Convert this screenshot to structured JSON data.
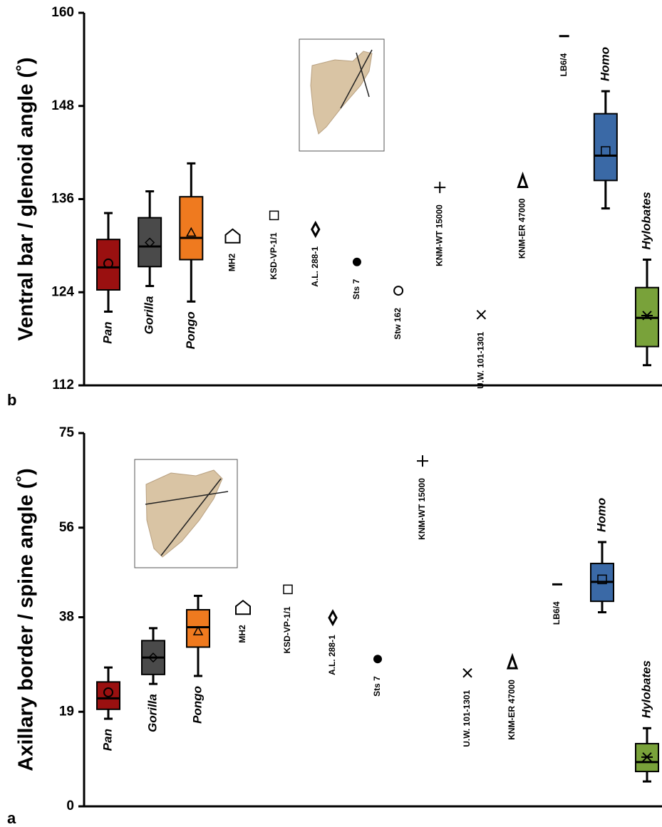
{
  "chart_data": [
    {
      "type": "box",
      "panel_label": "b",
      "ylabel": "Ventral bar / glenoid angle (˚)",
      "ylim": [
        112,
        160
      ],
      "yticks": [
        112,
        124,
        136,
        148,
        160
      ],
      "items": [
        {
          "name": "Pan",
          "color": "#9a1010",
          "marker": "circle",
          "min": 121.5,
          "q1": 124.3,
          "median": 127.2,
          "q3": 130.8,
          "max": 134.2,
          "mean": 127.7
        },
        {
          "name": "Gorilla",
          "color": "#4a4a4a",
          "marker": "diamond",
          "min": 124.8,
          "q1": 127.3,
          "median": 129.9,
          "q3": 133.6,
          "max": 137,
          "mean": 130.4
        },
        {
          "name": "Pongo",
          "color": "#ef7a1f",
          "marker": "triangle",
          "min": 122.8,
          "q1": 128.2,
          "median": 131,
          "q3": 136.3,
          "max": 140.6,
          "mean": 131.7
        },
        {
          "name": "MH2",
          "marker": "pentagon",
          "value": 131.2
        },
        {
          "name": "KSD-VP-1/1",
          "marker": "square",
          "value": 133.9
        },
        {
          "name": "A.L. 288-1",
          "marker": "diamond-bold",
          "value": 132.1
        },
        {
          "name": "Sts 7",
          "marker": "dot",
          "value": 127.9
        },
        {
          "name": "Stw 162",
          "marker": "circle",
          "value": 124.2
        },
        {
          "name": "KNM-WT 15000",
          "marker": "plus",
          "value": 137.5
        },
        {
          "name": "U.W. 101-1301",
          "marker": "cross",
          "value": 121.1
        },
        {
          "name": "KNM-ER 47000",
          "marker": "delta",
          "value": 138.3
        },
        {
          "name": "LB6/4",
          "marker": "dash",
          "value": 157
        },
        {
          "name": "Homo",
          "color": "#3a69a6",
          "marker": "square",
          "min": 134.8,
          "q1": 138.4,
          "median": 141.6,
          "q3": 147,
          "max": 149.9,
          "mean": 142.2
        },
        {
          "name": "Hylobates",
          "color": "#79a23a",
          "marker": "star",
          "min": 114.6,
          "q1": 117,
          "median": 120.7,
          "q3": 124.6,
          "max": 128.2,
          "mean": 121
        }
      ]
    },
    {
      "type": "box",
      "panel_label": "a",
      "ylabel": "Axillary border / spine angle (˚)",
      "ylim": [
        0,
        75
      ],
      "yticks": [
        0,
        19,
        38,
        56,
        75
      ],
      "items": [
        {
          "name": "Pan",
          "color": "#9a1010",
          "marker": "circle",
          "min": 17.6,
          "q1": 19.5,
          "median": 21.7,
          "q3": 25,
          "max": 27.9,
          "mean": 22.9
        },
        {
          "name": "Gorilla",
          "color": "#4a4a4a",
          "marker": "diamond",
          "min": 24.6,
          "q1": 26.5,
          "median": 29.9,
          "q3": 33.3,
          "max": 35.8,
          "mean": 29.9
        },
        {
          "name": "Pongo",
          "color": "#ef7a1f",
          "marker": "triangle",
          "min": 26.2,
          "q1": 32,
          "median": 36,
          "q3": 39.5,
          "max": 42.3,
          "mean": 35.2
        },
        {
          "name": "MH2",
          "marker": "pentagon",
          "value": 39.9
        },
        {
          "name": "KSD-VP-1/1",
          "marker": "square",
          "value": 43.6
        },
        {
          "name": "A.L. 288-1",
          "marker": "diamond-bold",
          "value": 37.9
        },
        {
          "name": "Sts 7",
          "marker": "dot",
          "value": 29.6
        },
        {
          "name": "KNM-WT 15000",
          "marker": "plus",
          "value": 69.4
        },
        {
          "name": "U.W. 101-1301",
          "marker": "cross",
          "value": 26.8
        },
        {
          "name": "KNM-ER 47000",
          "marker": "delta",
          "value": 28.9
        },
        {
          "name": "LB6/4",
          "marker": "dash",
          "value": 44.6
        },
        {
          "name": "Homo",
          "color": "#3a69a6",
          "marker": "square",
          "min": 39,
          "q1": 41.2,
          "median": 45.1,
          "q3": 48.8,
          "max": 53.1,
          "mean": 45.6
        },
        {
          "name": "Hylobates",
          "color": "#79a23a",
          "marker": "star",
          "min": 5,
          "q1": 7,
          "median": 8.9,
          "q3": 12.6,
          "max": 15.7,
          "mean": 9.9
        }
      ]
    }
  ]
}
